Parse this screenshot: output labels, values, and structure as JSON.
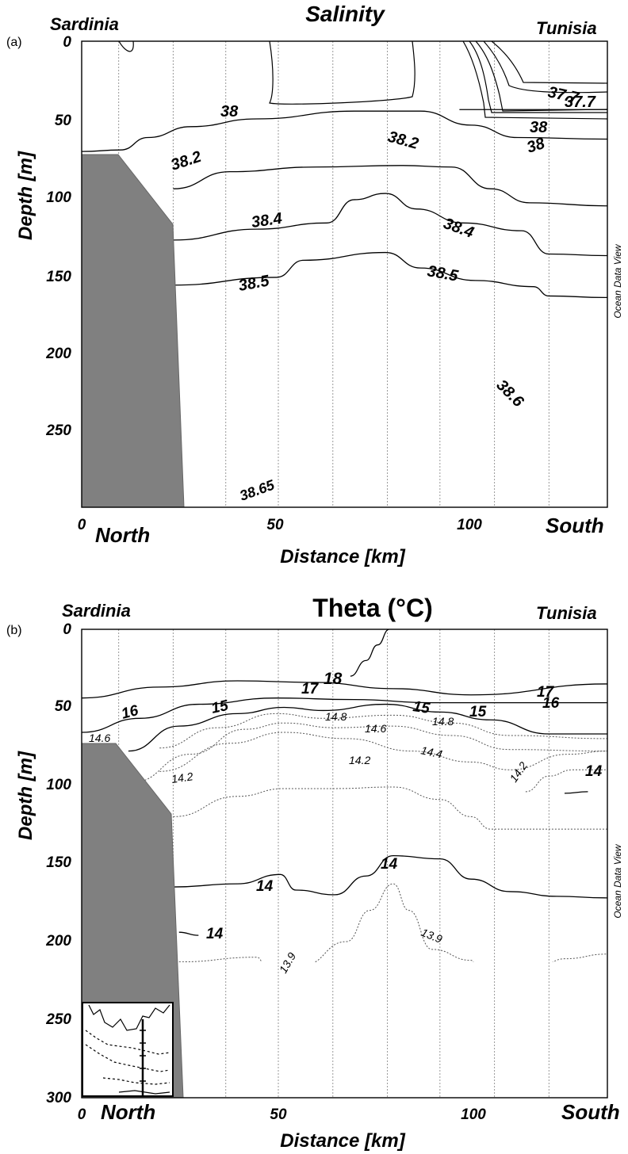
{
  "chart_data": [
    {
      "type": "contour",
      "panel_label": "(a)",
      "title": "Salinity",
      "xlabel": "Distance [km]",
      "ylabel": "Depth [m]",
      "xlim": [
        0,
        135
      ],
      "ylim": [
        300,
        0
      ],
      "x_ticks": [
        "0",
        "50",
        "100"
      ],
      "y_ticks": [
        "0",
        "50",
        "100",
        "150",
        "200",
        "250",
        "300"
      ],
      "corner_labels": {
        "top_left": "Sardinia",
        "top_right": "Tunisia",
        "bottom_left": "North",
        "bottom_right": "South"
      },
      "watermark": "Ocean Data View",
      "station_x_km": [
        9.5,
        23.5,
        37,
        50.5,
        64.5,
        78.5,
        92,
        106,
        120
      ],
      "contour_labels": [
        "38",
        "37.7",
        "37.7",
        "38",
        "38",
        "38.2",
        "38.2",
        "38.4",
        "38.4",
        "38.5",
        "38.5",
        "38.6",
        "38.65"
      ],
      "contours": [
        {
          "level": 37.7,
          "points": [
            [
              97,
              44
            ],
            [
              135,
              44
            ]
          ]
        },
        {
          "level": 38,
          "points": [
            [
              0,
              71
            ],
            [
              10,
              70
            ],
            [
              17,
              62
            ],
            [
              28,
              55
            ],
            [
              45,
              50
            ],
            [
              70,
              45
            ],
            [
              87,
              45
            ],
            [
              100,
              54
            ],
            [
              112,
              62
            ],
            [
              135,
              63
            ]
          ]
        },
        {
          "level": 38.2,
          "points": [
            [
              23.5,
              95
            ],
            [
              38,
              84
            ],
            [
              60,
              81
            ],
            [
              82,
              80
            ],
            [
              95,
              81
            ],
            [
              105,
              95
            ],
            [
              115,
              104
            ],
            [
              135,
              106
            ]
          ]
        },
        {
          "level": 38.4,
          "points": [
            [
              23.5,
              128
            ],
            [
              45,
              121
            ],
            [
              63,
              117
            ],
            [
              70,
              102
            ],
            [
              78,
              98
            ],
            [
              86,
              108
            ],
            [
              98,
              117
            ],
            [
              113,
              122
            ],
            [
              120,
              137
            ],
            [
              135,
              138
            ]
          ]
        },
        {
          "level": 38.5,
          "points": [
            [
              23.5,
              157
            ],
            [
              50,
              152
            ],
            [
              57,
              141
            ],
            [
              78,
              136
            ],
            [
              87,
              146
            ],
            [
              101,
              154
            ],
            [
              116,
              158
            ],
            [
              120,
              164
            ],
            [
              135,
              165
            ]
          ]
        },
        {
          "level": 38.6,
          "points": [
            [
              25,
              247
            ],
            [
              42,
              247
            ],
            [
              50,
              224
            ],
            [
              67,
              222
            ],
            [
              82,
              234
            ],
            [
              95,
              232
            ],
            [
              103,
              222
            ],
            [
              110,
              222
            ],
            [
              118,
              238
            ],
            [
              124,
              247
            ],
            [
              135,
              247
            ]
          ]
        },
        {
          "level": 38.65,
          "points": [
            [
              38,
              300
            ],
            [
              50,
              290
            ],
            [
              57,
              300
            ]
          ]
        }
      ]
    },
    {
      "type": "contour",
      "panel_label": "(b)",
      "title": "Theta (°C)",
      "xlabel": "Distance [km]",
      "ylabel": "Depth [m]",
      "xlim": [
        0,
        135
      ],
      "ylim": [
        300,
        0
      ],
      "x_ticks": [
        "0",
        "50",
        "100"
      ],
      "y_ticks": [
        "0",
        "50",
        "100",
        "150",
        "200",
        "250",
        "300"
      ],
      "corner_labels": {
        "top_left": "Sardinia",
        "top_right": "Tunisia",
        "bottom_left": "North",
        "bottom_right": "South"
      },
      "watermark": "Ocean Data View",
      "station_x_km": [
        9.5,
        23.5,
        37,
        50.5,
        64.5,
        78.5,
        92,
        106,
        120
      ],
      "contour_labels": [
        "18",
        "17",
        "17",
        "16",
        "16",
        "15",
        "15",
        "15",
        "14.8",
        "14.8",
        "14.6",
        "14.6",
        "14.4",
        "14.2",
        "14.2",
        "14.2",
        "14",
        "14",
        "14",
        "14",
        "13.9",
        "13.9"
      ],
      "contours": [
        {
          "level": 18,
          "points": [
            [
              69,
              30
            ],
            [
              73,
              20
            ],
            [
              76,
              10
            ],
            [
              79,
              0
            ]
          ]
        },
        {
          "level": 17,
          "points": [
            [
              0,
              44
            ],
            [
              20,
              37
            ],
            [
              40,
              33
            ],
            [
              60,
              34
            ],
            [
              80,
              38
            ],
            [
              100,
              42
            ],
            [
              135,
              35
            ]
          ]
        },
        {
          "level": 16,
          "points": [
            [
              0,
              66
            ],
            [
              15,
              57
            ],
            [
              30,
              48
            ],
            [
              50,
              44
            ],
            [
              70,
              45
            ],
            [
              90,
              47
            ],
            [
              115,
              47
            ],
            [
              135,
              47
            ]
          ]
        },
        {
          "level": 15,
          "points": [
            [
              12,
              78
            ],
            [
              25,
              62
            ],
            [
              40,
              54
            ],
            [
              52,
              50
            ],
            [
              62,
              52
            ],
            [
              78,
              48
            ],
            [
              92,
              53
            ],
            [
              105,
              58
            ],
            [
              120,
              67
            ],
            [
              135,
              67
            ]
          ]
        },
        {
          "level": 14.8,
          "points": [
            [
              20,
              76
            ],
            [
              35,
              63
            ],
            [
              50,
              54
            ],
            [
              62,
              57
            ],
            [
              80,
              55
            ],
            [
              95,
              60
            ],
            [
              110,
              68
            ],
            [
              135,
              70
            ]
          ]
        },
        {
          "level": 14.6,
          "points": [
            [
              13,
              98
            ],
            [
              28,
              80
            ],
            [
              42,
              64
            ],
            [
              52,
              60
            ],
            [
              65,
              63
            ],
            [
              80,
              62
            ],
            [
              95,
              68
            ],
            [
              110,
              77
            ],
            [
              135,
              78
            ]
          ]
        },
        {
          "level": 14.4,
          "points": [
            [
              20,
              91
            ],
            [
              38,
              73
            ],
            [
              52,
              66
            ],
            [
              68,
              70
            ],
            [
              85,
              78
            ],
            [
              100,
              85
            ],
            [
              110,
              90
            ],
            [
              125,
              80
            ],
            [
              135,
              78
            ]
          ]
        },
        {
          "level": 14.2,
          "points": [
            [
              23.5,
              120
            ],
            [
              40,
              107
            ],
            [
              52,
              102
            ],
            [
              65,
              102
            ],
            [
              80,
              101
            ],
            [
              92,
              109
            ],
            [
              100,
              120
            ],
            [
              105,
              128
            ],
            [
              135,
              128
            ]
          ]
        },
        {
          "level": 14.2,
          "points": [
            [
              114,
              104
            ],
            [
              120,
              94
            ],
            [
              126,
              90
            ],
            [
              135,
              90
            ]
          ]
        },
        {
          "level": 14,
          "points": [
            [
              23.5,
              165
            ],
            [
              40,
              163
            ],
            [
              51,
              157
            ],
            [
              55,
              167
            ],
            [
              65,
              170
            ],
            [
              73,
              158
            ],
            [
              80,
              145
            ],
            [
              92,
              147
            ],
            [
              100,
              160
            ],
            [
              110,
              168
            ],
            [
              122,
              171
            ],
            [
              135,
              172
            ]
          ]
        },
        {
          "level": 14,
          "points": [
            [
              124,
              105
            ],
            [
              130,
              104
            ]
          ]
        },
        {
          "level": 14,
          "points": [
            [
              25,
              194
            ],
            [
              30,
              196
            ]
          ]
        },
        {
          "level": 13.9,
          "points": [
            [
              25,
              213
            ],
            [
              45,
              210
            ],
            [
              49,
              230
            ],
            [
              51,
              239
            ],
            [
              54,
              237
            ],
            [
              57,
              215
            ],
            [
              68,
              200
            ],
            [
              74,
              180
            ],
            [
              80,
              163
            ],
            [
              84,
              180
            ],
            [
              90,
              205
            ],
            [
              100,
              212
            ],
            [
              103,
              232
            ],
            [
              108,
              235
            ],
            [
              114,
              225
            ],
            [
              124,
              211
            ],
            [
              135,
              208
            ]
          ]
        }
      ],
      "inset_map": "station location map"
    }
  ]
}
